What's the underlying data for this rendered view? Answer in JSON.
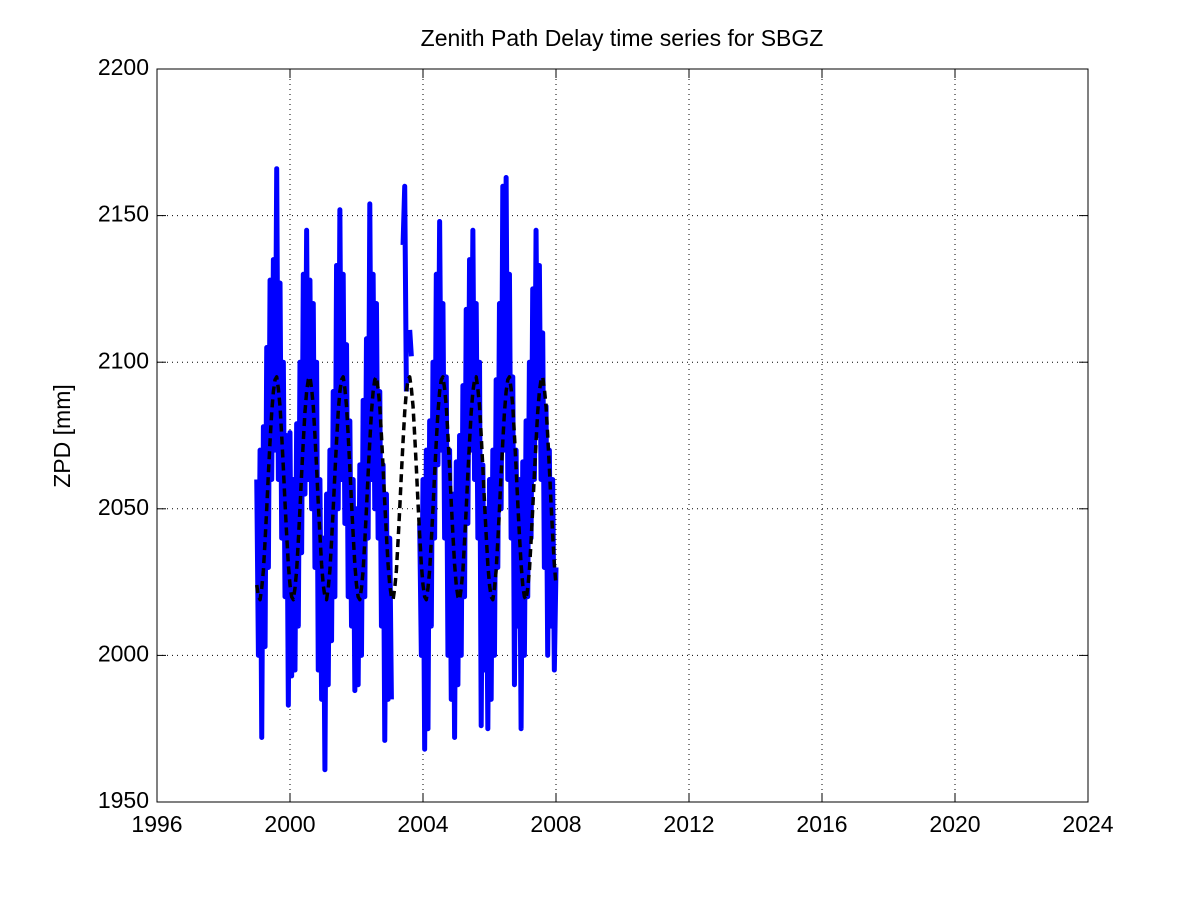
{
  "chart_data": {
    "type": "line",
    "title": "Zenith Path Delay time series for SBGZ",
    "ylabel": "ZPD [mm]",
    "x": [
      1999.0,
      1999.05,
      1999.1,
      1999.15,
      1999.2,
      1999.25,
      1999.3,
      1999.35,
      1999.4,
      1999.45,
      1999.5,
      1999.55,
      1999.6,
      1999.65,
      1999.7,
      1999.75,
      1999.8,
      1999.85,
      1999.9,
      1999.95,
      2000.0,
      2000.05,
      2000.1,
      2000.15,
      2000.2,
      2000.25,
      2000.3,
      2000.35,
      2000.4,
      2000.45,
      2000.5,
      2000.55,
      2000.6,
      2000.65,
      2000.7,
      2000.75,
      2000.8,
      2000.85,
      2000.9,
      2000.95,
      2001.0,
      2001.05,
      2001.1,
      2001.15,
      2001.2,
      2001.25,
      2001.3,
      2001.35,
      2001.4,
      2001.45,
      2001.5,
      2001.55,
      2001.6,
      2001.65,
      2001.7,
      2001.75,
      2001.8,
      2001.85,
      2001.9,
      2001.95,
      2002.0,
      2002.05,
      2002.1,
      2002.15,
      2002.2,
      2002.25,
      2002.3,
      2002.35,
      2002.4,
      2002.45,
      2002.5,
      2002.55,
      2002.6,
      2002.65,
      2002.7,
      2002.75,
      2002.8,
      2002.85,
      2002.9,
      2002.95,
      2003.0,
      2003.05,
      2003.1,
      2003.15,
      2003.2,
      2003.25,
      2003.3,
      2003.35,
      2003.4,
      2003.45,
      2003.5,
      2003.55,
      2003.6,
      2003.65,
      2003.7,
      2003.75,
      2003.8,
      2003.85,
      2003.9,
      2003.95,
      2004.0,
      2004.05,
      2004.1,
      2004.15,
      2004.2,
      2004.25,
      2004.3,
      2004.35,
      2004.4,
      2004.45,
      2004.5,
      2004.55,
      2004.6,
      2004.65,
      2004.7,
      2004.75,
      2004.8,
      2004.85,
      2004.9,
      2004.95,
      2005.0,
      2005.05,
      2005.1,
      2005.15,
      2005.2,
      2005.25,
      2005.3,
      2005.35,
      2005.4,
      2005.45,
      2005.5,
      2005.55,
      2005.6,
      2005.65,
      2005.7,
      2005.75,
      2005.8,
      2005.85,
      2005.9,
      2005.95,
      2006.0,
      2006.05,
      2006.1,
      2006.15,
      2006.2,
      2006.25,
      2006.3,
      2006.35,
      2006.4,
      2006.45,
      2006.5,
      2006.55,
      2006.6,
      2006.65,
      2006.7,
      2006.75,
      2006.8,
      2006.85,
      2006.9,
      2006.95,
      2007.0,
      2007.05,
      2007.1,
      2007.15,
      2007.2,
      2007.25,
      2007.3,
      2007.35,
      2007.4,
      2007.45,
      2007.5,
      2007.55,
      2007.6,
      2007.65,
      2007.7,
      2007.75,
      2007.8,
      2007.85,
      2007.9,
      2007.95,
      2008.0
    ],
    "series": [
      {
        "color": "#0000ff",
        "linestyle": "solid",
        "values": [
          2060,
          2000,
          2070,
          1972,
          2078,
          2003,
          2105,
          2030,
          2128,
          2060,
          2135,
          2070,
          2166,
          2060,
          2127,
          2040,
          2100,
          2020,
          2075,
          1983,
          2076,
          1993,
          2060,
          1995,
          2079,
          2010,
          2100,
          2035,
          2130,
          2055,
          2145,
          2060,
          2128,
          2050,
          2120,
          2030,
          2100,
          1995,
          2060,
          1985,
          2040,
          1961,
          2055,
          1990,
          2070,
          2005,
          2090,
          2020,
          2133,
          2050,
          2152,
          2060,
          2130,
          2045,
          2106,
          2020,
          2080,
          2010,
          2060,
          1988,
          2050,
          1990,
          2065,
          2000,
          2087,
          2020,
          2108,
          2040,
          2154,
          2060,
          2130,
          2050,
          2120,
          2040,
          2090,
          2010,
          2065,
          1971,
          2055,
          1985,
          2040,
          1985,
          null,
          null,
          null,
          null,
          null,
          null,
          2140,
          2160,
          2090,
          null,
          2111,
          2102,
          null,
          null,
          null,
          null,
          2045,
          2000,
          2060,
          1968,
          2070,
          1975,
          2080,
          2010,
          2100,
          2040,
          2130,
          2065,
          2148,
          2070,
          2120,
          2040,
          2095,
          2000,
          2070,
          1985,
          2055,
          1972,
          2066,
          1990,
          2075,
          2000,
          2092,
          2020,
          2118,
          2045,
          2135,
          2070,
          2145,
          2060,
          2120,
          2040,
          2100,
          1976,
          2065,
          1995,
          2050,
          1975,
          2060,
          1985,
          2070,
          2000,
          2094,
          2030,
          2120,
          2050,
          2160,
          2070,
          2163,
          2060,
          2130,
          2040,
          2095,
          1990,
          2070,
          2010,
          2060,
          1975,
          2066,
          2000,
          2080,
          2020,
          2100,
          2040,
          2125,
          2060,
          2145,
          2075,
          2133,
          2060,
          2110,
          2030,
          2085,
          2000,
          2070,
          2010,
          2060,
          1995,
          2030
        ]
      },
      {
        "color": "#000000",
        "linestyle": "dashed",
        "values": [
          2024,
          2020,
          2019,
          2023,
          2029,
          2039,
          2050,
          2062,
          2073,
          2083,
          2090,
          2094,
          2095,
          2091,
          2085,
          2075,
          2064,
          2052,
          2041,
          2031,
          2024,
          2020,
          2019,
          2023,
          2029,
          2039,
          2050,
          2062,
          2073,
          2083,
          2090,
          2094,
          2095,
          2091,
          2085,
          2075,
          2064,
          2052,
          2041,
          2031,
          2024,
          2020,
          2019,
          2023,
          2029,
          2039,
          2050,
          2062,
          2073,
          2083,
          2090,
          2094,
          2095,
          2091,
          2085,
          2075,
          2064,
          2052,
          2041,
          2031,
          2024,
          2020,
          2019,
          2023,
          2029,
          2039,
          2050,
          2062,
          2073,
          2083,
          2090,
          2094,
          2095,
          2091,
          2085,
          2075,
          2064,
          2052,
          2041,
          2031,
          2024,
          2020,
          2019,
          2023,
          2029,
          2039,
          2050,
          2062,
          2073,
          2083,
          2090,
          2094,
          2095,
          2091,
          2085,
          2075,
          2064,
          2052,
          2041,
          2031,
          2024,
          2020,
          2019,
          2023,
          2029,
          2039,
          2050,
          2062,
          2073,
          2083,
          2090,
          2094,
          2095,
          2091,
          2085,
          2075,
          2064,
          2052,
          2041,
          2031,
          2024,
          2020,
          2019,
          2023,
          2029,
          2039,
          2050,
          2062,
          2073,
          2083,
          2090,
          2094,
          2095,
          2091,
          2085,
          2075,
          2064,
          2052,
          2041,
          2031,
          2024,
          2020,
          2019,
          2023,
          2029,
          2039,
          2050,
          2062,
          2073,
          2083,
          2090,
          2094,
          2095,
          2091,
          2085,
          2075,
          2064,
          2052,
          2041,
          2031,
          2024,
          2020,
          2019,
          2023,
          2029,
          2039,
          2050,
          2062,
          2073,
          2083,
          2090,
          2094,
          2095,
          2091,
          2085,
          2075,
          2064,
          2052,
          2041,
          2031,
          2024
        ]
      }
    ],
    "xlim": [
      1996,
      2024
    ],
    "xticks": [
      1996,
      2000,
      2004,
      2008,
      2012,
      2016,
      2020,
      2024
    ],
    "ylim": [
      1950,
      2200
    ],
    "yticks": [
      1950,
      2000,
      2050,
      2100,
      2150,
      2200
    ],
    "grid": true
  }
}
